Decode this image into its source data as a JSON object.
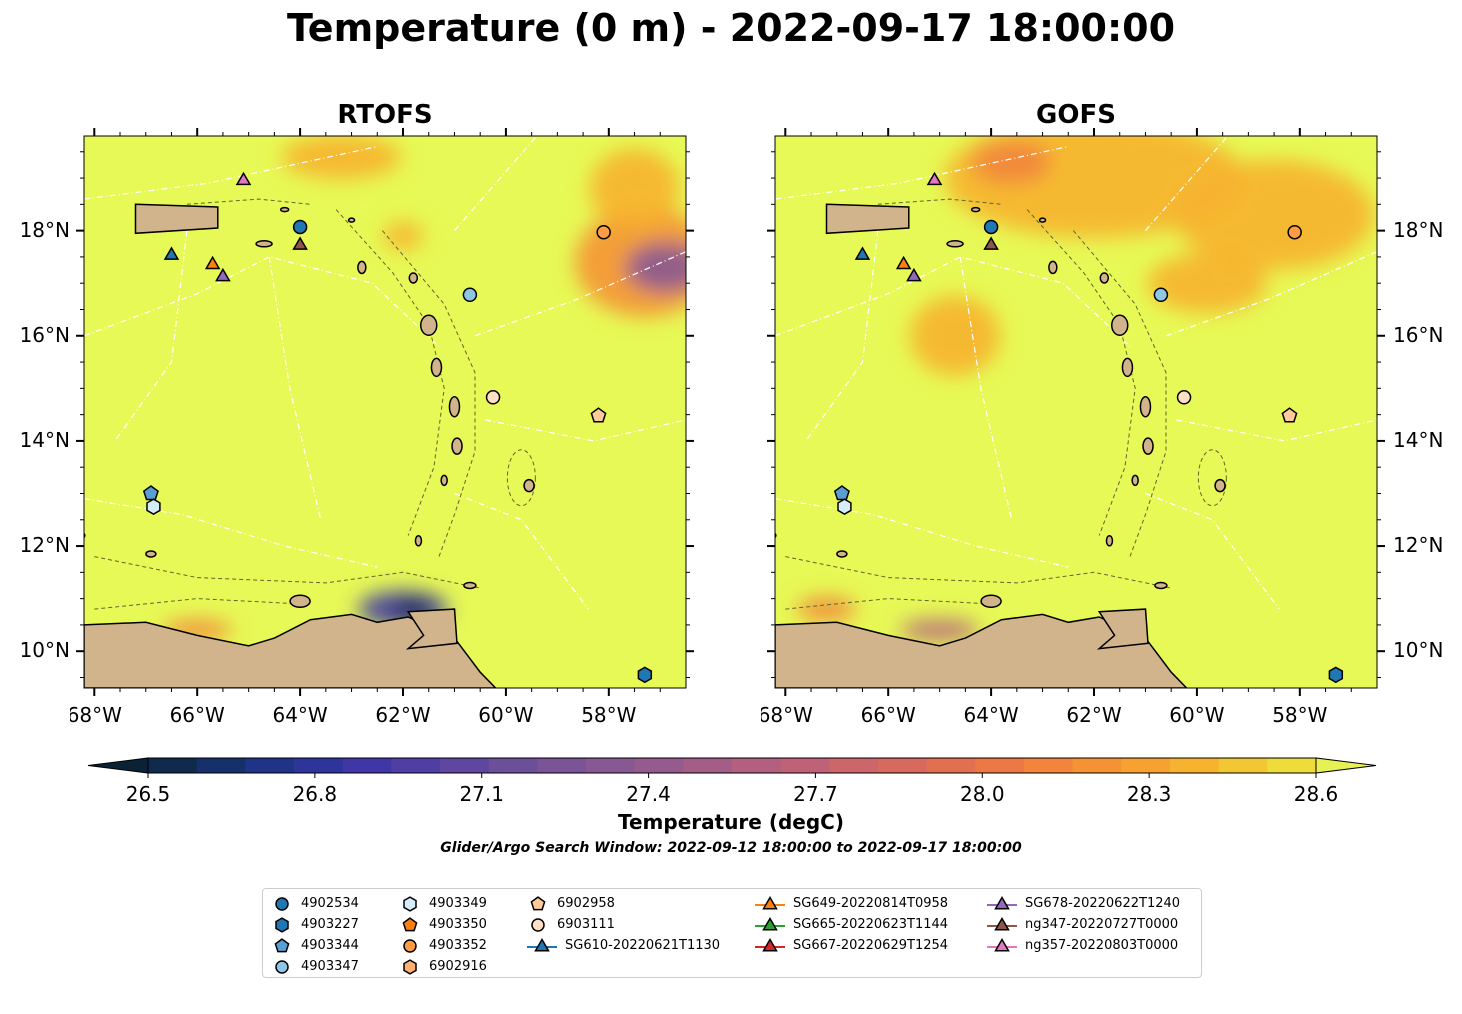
{
  "title": "Temperature (0 m) - 2022-09-17 18:00:00",
  "maps": [
    {
      "title": "RTOFS"
    },
    {
      "title": "GOFS"
    }
  ],
  "axes": {
    "lon_ticks": [
      "68°W",
      "66°W",
      "64°W",
      "62°W",
      "60°W",
      "58°W"
    ],
    "lat_ticks": [
      "18°N",
      "16°N",
      "14°N",
      "12°N",
      "10°N"
    ],
    "lon_range": [
      -68.2,
      -56.5
    ],
    "lat_range": [
      9.3,
      19.8
    ]
  },
  "colorbar": {
    "label": "Temperature (degC)",
    "ticks": [
      "26.5",
      "26.8",
      "27.1",
      "27.4",
      "27.7",
      "28.0",
      "28.3",
      "28.6"
    ],
    "range": [
      26.5,
      28.6
    ],
    "extend": "both",
    "colors": [
      "#0b2135",
      "#0f2a4c",
      "#16306b",
      "#1f3487",
      "#2d359b",
      "#4036a5",
      "#513ea4",
      "#5f46a0",
      "#6c4f9b",
      "#7a5496",
      "#885893",
      "#965b8d",
      "#a45d87",
      "#b25f80",
      "#c06277",
      "#cc666b",
      "#d8695f",
      "#e36f51",
      "#ec7845",
      "#f2853b",
      "#f59334",
      "#f7a230",
      "#f7b32f",
      "#f3c633",
      "#eedc3a",
      "#e7f156"
    ]
  },
  "search_window": "Glider/Argo Search Window: 2022-09-12 18:00:00 to 2022-09-17 18:00:00",
  "legend": {
    "columns": [
      [
        {
          "label": "4902534",
          "marker": "circle",
          "color": "#1f77b4"
        },
        {
          "label": "4903227",
          "marker": "hexagon",
          "color": "#1f77b4"
        },
        {
          "label": "4903344",
          "marker": "pentagon",
          "color": "#5a9fd4"
        },
        {
          "label": "4903347",
          "marker": "circle",
          "color": "#8ec6e8"
        }
      ],
      [
        {
          "label": "4903349",
          "marker": "hexagon",
          "color": "#d5ecfa"
        },
        {
          "label": "4903350",
          "marker": "pentagon",
          "color": "#ff7f0e"
        },
        {
          "label": "4903352",
          "marker": "circle",
          "color": "#ff9d45"
        },
        {
          "label": "6902916",
          "marker": "hexagon",
          "color": "#ffb070"
        }
      ],
      [
        {
          "label": "6902958",
          "marker": "pentagon",
          "color": "#ffcb9a"
        },
        {
          "label": "6903111",
          "marker": "circle",
          "color": "#ffe0c2"
        },
        {
          "label": "SG610-20220621T1130",
          "marker": "triangle-line",
          "color": "#1f77b4"
        }
      ],
      [
        {
          "label": "SG649-20220814T0958",
          "marker": "triangle-line",
          "color": "#ff7f0e"
        },
        {
          "label": "SG665-20220623T1144",
          "marker": "triangle-line",
          "color": "#2ca02c"
        },
        {
          "label": "SG667-20220629T1254",
          "marker": "triangle-line",
          "color": "#d62728"
        }
      ],
      [
        {
          "label": "SG678-20220622T1240",
          "marker": "triangle-line",
          "color": "#9467bd"
        },
        {
          "label": "ng347-20220727T0000",
          "marker": "triangle-line",
          "color": "#8c564b"
        },
        {
          "label": "ng357-20220803T0000",
          "marker": "triangle-line",
          "color": "#e377c2"
        }
      ]
    ]
  },
  "observations": [
    {
      "id": "4902534",
      "lon": -64.0,
      "lat": 18.07,
      "marker": "circle",
      "color": "#1f77b4"
    },
    {
      "id": "4903227",
      "lon": -57.3,
      "lat": 9.55,
      "marker": "hexagon",
      "color": "#1f77b4"
    },
    {
      "id": "4903344",
      "lon": -66.9,
      "lat": 13.0,
      "marker": "pentagon",
      "color": "#5a9fd4"
    },
    {
      "id": "4903347",
      "lon": -60.7,
      "lat": 16.78,
      "marker": "circle",
      "color": "#8ec6e8"
    },
    {
      "id": "4903349",
      "lon": -66.85,
      "lat": 12.75,
      "marker": "hexagon",
      "color": "#d5ecfa"
    },
    {
      "id": "4903352",
      "lon": -58.1,
      "lat": 17.97,
      "marker": "circle",
      "color": "#ff9d45"
    },
    {
      "id": "6902958",
      "lon": -58.2,
      "lat": 14.48,
      "marker": "pentagon",
      "color": "#ffcb9a"
    },
    {
      "id": "6903111",
      "lon": -60.25,
      "lat": 14.83,
      "marker": "circle",
      "color": "#ffe0c2"
    },
    {
      "id": "SG610",
      "lon": -66.5,
      "lat": 17.53,
      "marker": "triangle",
      "color": "#1f77b4"
    },
    {
      "id": "SG649",
      "lon": -65.7,
      "lat": 17.35,
      "marker": "triangle",
      "color": "#ff7f0e"
    },
    {
      "id": "SG678",
      "lon": -65.5,
      "lat": 17.12,
      "marker": "triangle",
      "color": "#9467bd"
    },
    {
      "id": "ng347",
      "lon": -64.0,
      "lat": 17.72,
      "marker": "triangle",
      "color": "#8c564b"
    },
    {
      "id": "ng357",
      "lon": -65.1,
      "lat": 18.95,
      "marker": "triangle",
      "color": "#e377c2"
    }
  ]
}
